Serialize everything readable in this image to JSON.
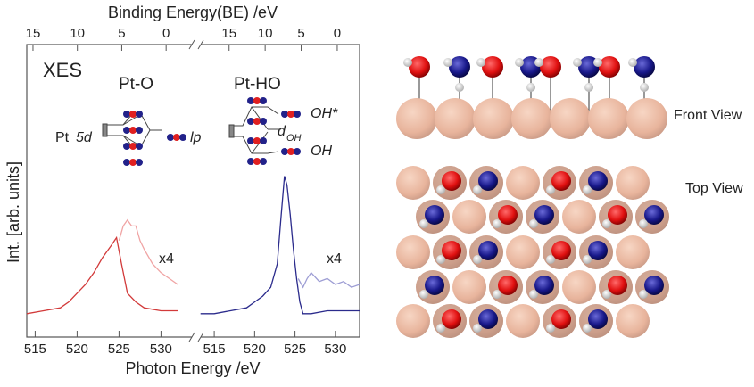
{
  "chart_data": [
    {
      "type": "line",
      "x_label": "Photon Energy /eV",
      "x2_label": "Binding Energy(BE) /eV",
      "y_label": "Int. [arb. units]",
      "xlim": [
        514,
        534
      ],
      "xticks": [
        515,
        520,
        525,
        530
      ],
      "x2lim": [
        15.7,
        -3.2
      ],
      "x2ticks": [
        15,
        10,
        5,
        0
      ],
      "ylim": [
        0,
        1
      ],
      "annotations": [
        "XES",
        "Pt-O",
        "x4",
        "Pt",
        "5d",
        "lp"
      ],
      "series": [
        {
          "color": "#d23a3a",
          "x": [
            514,
            516,
            518,
            519,
            520,
            521,
            522,
            523,
            524,
            524.7,
            525.3,
            526,
            527,
            528,
            530,
            532
          ],
          "values": [
            0.08,
            0.09,
            0.1,
            0.12,
            0.15,
            0.18,
            0.22,
            0.27,
            0.31,
            0.34,
            0.25,
            0.15,
            0.12,
            0.1,
            0.09,
            0.09
          ]
        },
        {
          "color": "#f0a4a4",
          "x": [
            525,
            525.5,
            526,
            526.5,
            527,
            527.5,
            528,
            529,
            530,
            531,
            532
          ],
          "values": [
            0.33,
            0.38,
            0.4,
            0.38,
            0.38,
            0.33,
            0.3,
            0.25,
            0.22,
            0.2,
            0.18
          ]
        }
      ]
    },
    {
      "type": "line",
      "xlim": [
        513,
        533
      ],
      "xticks": [
        515,
        520,
        525,
        530
      ],
      "x2lim": [
        19.3,
        -3.1
      ],
      "x2ticks": [
        15,
        10,
        5,
        0
      ],
      "ylim": [
        0,
        1
      ],
      "annotations": [
        "Pt-HO",
        "x4",
        "OH*",
        "d",
        "OH",
        "OH"
      ],
      "series": [
        {
          "color": "#2b2b8c",
          "x": [
            513.3,
            515,
            517,
            519,
            520,
            521,
            522,
            522.8,
            523.3,
            523.7,
            524,
            524.4,
            524.8,
            525.2,
            525.6,
            526,
            527,
            529,
            531,
            533
          ],
          "values": [
            0.08,
            0.08,
            0.09,
            0.1,
            0.12,
            0.14,
            0.17,
            0.25,
            0.42,
            0.55,
            0.52,
            0.42,
            0.3,
            0.2,
            0.12,
            0.08,
            0.08,
            0.09,
            0.09,
            0.09
          ]
        },
        {
          "color": "#9d9dd4",
          "x": [
            525.4,
            526,
            526.5,
            527,
            528,
            529,
            530,
            531,
            532,
            533
          ],
          "values": [
            0.2,
            0.17,
            0.2,
            0.22,
            0.19,
            0.2,
            0.18,
            0.19,
            0.17,
            0.18
          ]
        }
      ]
    }
  ],
  "diagram": {
    "labels": [
      "Front View",
      "Top View"
    ]
  }
}
